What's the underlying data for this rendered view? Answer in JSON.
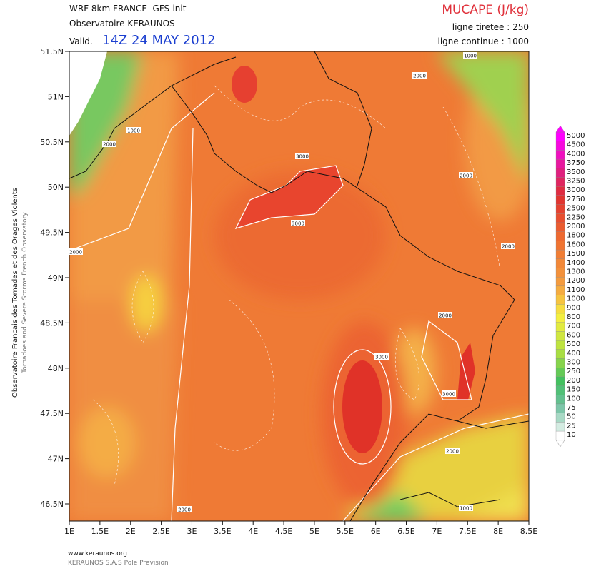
{
  "header": {
    "model": "WRF 8km FRANCE  GFS-init",
    "observatory": "Observatoire KERAUNOS",
    "valid_label": "Valid.",
    "valid_time": "14Z 24 MAY 2012",
    "field": "MUCAPE (J/kg)",
    "dashed": "ligne tiretee : 250",
    "solid": "ligne continue : 1000"
  },
  "side": {
    "fr": "Observatoire Francais des Tornades et des Orages Violents",
    "en": "Tornadoes and Severe Storms French Observatory"
  },
  "lat_labels": [
    "51.5N",
    "51N",
    "50.5N",
    "50N",
    "49.5N",
    "49N",
    "48.5N",
    "48N",
    "47.5N",
    "47N",
    "46.5N"
  ],
  "lon_labels": [
    "1E",
    "1.5E",
    "2E",
    "2.5E",
    "3E",
    "3.5E",
    "4E",
    "4.5E",
    "5E",
    "5.5E",
    "6E",
    "6.5E",
    "7E",
    "7.5E",
    "8E",
    "8.5E"
  ],
  "contour_labels": [
    "1000",
    "2000",
    "1000",
    "2000",
    "3000",
    "3000",
    "2000",
    "2000",
    "2000",
    "2000",
    "3000",
    "3000",
    "2000",
    "1000",
    "2000"
  ],
  "colorbar_labels": [
    "5000",
    "4500",
    "4000",
    "3750",
    "3500",
    "3250",
    "3000",
    "2750",
    "2500",
    "2250",
    "2000",
    "1800",
    "1600",
    "1500",
    "1400",
    "1300",
    "1200",
    "1100",
    "1000",
    "900",
    "800",
    "700",
    "600",
    "500",
    "400",
    "300",
    "250",
    "200",
    "150",
    "100",
    "75",
    "50",
    "25",
    "10"
  ],
  "footer": {
    "site": "www.keraunos.org",
    "company": "KERAUNOS S.A.S Pole Prevision"
  }
}
